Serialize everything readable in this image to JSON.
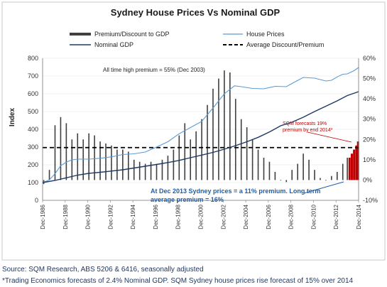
{
  "chart_data": {
    "type": "bar",
    "title": "Sydney House Prices Vs Nominal GDP",
    "ylabel": "Index",
    "ylim": [
      0,
      800
    ],
    "yticks": [
      0,
      100,
      200,
      300,
      400,
      500,
      600,
      700,
      800
    ],
    "y2lim": [
      -10,
      60
    ],
    "y2ticks": [
      "-10%",
      "0%",
      "10%",
      "20%",
      "30%",
      "40%",
      "50%",
      "60%"
    ],
    "x_range": [
      1986.9,
      2014.9
    ],
    "x_tick_labels": [
      "Dec-1986",
      "Dec-1988",
      "Dec-1990",
      "Dec-1992",
      "Dec-1994",
      "Dec-1996",
      "Dec-1998",
      "Dec-2000",
      "Dec-2002",
      "Dec-2004",
      "Dec-2006",
      "Dec-2008",
      "Dec-2010",
      "Dec-2012",
      "Dec-2014"
    ],
    "legend": {
      "placement": "top",
      "entries": [
        "Premium/Discount to GDP",
        "House Prices",
        "Nominal GDP",
        "Average Discount/Premium"
      ]
    },
    "average_premium_pct": 16,
    "annotations": {
      "peak": "All time high premium = 55% (Dec 2003)",
      "forecast": "SQM forecasts 19% premium by end 2014*",
      "dec2013_line1": "At Dec 2013 Sydney prices = a 11% premium. Long term",
      "dec2013_line2": "average premium = 16%"
    },
    "series": [
      {
        "name": "House Prices",
        "axis": "left",
        "color": "#5b9bd5",
        "x": [
          1986.9,
          1987.5,
          1988.0,
          1988.5,
          1989.0,
          1989.5,
          1990.0,
          1991.0,
          1992.0,
          1993.0,
          1994.0,
          1995.0,
          1996.0,
          1997.0,
          1998.0,
          1999.0,
          2000.0,
          2001.0,
          2002.0,
          2003.0,
          2003.9,
          2004.5,
          2005.5,
          2006.5,
          2007.5,
          2008.5,
          2009.0,
          2010.0,
          2011.0,
          2012.0,
          2012.5,
          2013.0,
          2013.5,
          2013.9,
          2014.5,
          2014.9
        ],
        "y": [
          100,
          115,
          150,
          195,
          215,
          228,
          232,
          232,
          237,
          245,
          258,
          262,
          272,
          300,
          330,
          375,
          410,
          445,
          520,
          600,
          645,
          640,
          630,
          628,
          642,
          640,
          658,
          692,
          688,
          672,
          676,
          695,
          710,
          712,
          730,
          748
        ]
      },
      {
        "name": "Nominal GDP",
        "axis": "left",
        "color": "#1f3864",
        "x": [
          1986.9,
          1988.0,
          1989.0,
          1990.0,
          1991.0,
          1992.0,
          1993.0,
          1994.0,
          1995.0,
          1996.0,
          1997.0,
          1998.0,
          1999.0,
          2000.0,
          2001.0,
          2002.0,
          2003.0,
          2004.0,
          2005.0,
          2006.0,
          2007.0,
          2008.0,
          2009.0,
          2010.0,
          2011.0,
          2012.0,
          2013.0,
          2013.9,
          2014.9
        ],
        "y": [
          100,
          112,
          127,
          142,
          152,
          158,
          165,
          172,
          182,
          192,
          202,
          213,
          225,
          240,
          255,
          270,
          288,
          308,
          330,
          355,
          385,
          420,
          440,
          468,
          500,
          530,
          560,
          590,
          612
        ]
      },
      {
        "name": "Premium/Discount to GDP",
        "axis": "right",
        "color": "#404040",
        "x": [
          1987.0,
          1987.5,
          1988.0,
          1988.5,
          1989.0,
          1989.5,
          1990.0,
          1990.5,
          1991.0,
          1991.5,
          1992.0,
          1992.5,
          1993.0,
          1993.5,
          1994.0,
          1994.5,
          1995.0,
          1995.5,
          1996.0,
          1996.5,
          1997.0,
          1997.5,
          1998.0,
          1998.5,
          1999.0,
          1999.5,
          2000.0,
          2000.5,
          2001.0,
          2001.5,
          2002.0,
          2002.5,
          2003.0,
          2003.5,
          2004.0,
          2004.5,
          2005.0,
          2005.5,
          2006.0,
          2006.5,
          2007.0,
          2007.5,
          2008.0,
          2008.5,
          2009.0,
          2009.5,
          2010.0,
          2010.5,
          2011.0,
          2011.5,
          2012.0,
          2012.5,
          2013.0,
          2013.5,
          2013.9
        ],
        "y": [
          -2,
          5,
          27,
          31,
          28,
          20,
          23,
          20,
          23,
          22,
          19,
          18,
          17,
          15,
          15,
          14,
          10,
          9,
          8,
          9,
          8,
          10,
          12,
          15,
          22,
          28,
          20,
          24,
          30,
          37,
          45,
          50,
          54,
          53,
          40,
          30,
          26,
          20,
          15,
          11,
          9,
          4,
          0,
          -1,
          5,
          8,
          13,
          10,
          5,
          1,
          0,
          2,
          4,
          8,
          11
        ]
      },
      {
        "name": "SQM forecast 2014",
        "axis": "right",
        "color": "#c00000",
        "x": [
          2014.1,
          2014.3,
          2014.5,
          2014.7,
          2014.85
        ],
        "y": [
          11,
          13,
          15,
          17,
          19
        ]
      }
    ]
  },
  "notes": {
    "source": "Source: SQM Research, ABS 5206 & 6416, seasonally adjusted",
    "footnote": "*Trading Economics forecasts of 2.4% Nominal GDP. SQM Sydney house prices rise forecast of 15% over 2014"
  }
}
